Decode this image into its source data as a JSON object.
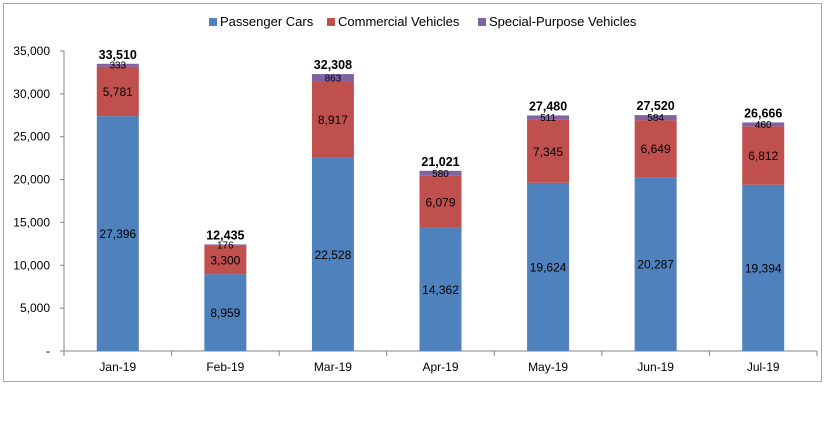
{
  "chart_data": {
    "type": "bar",
    "stacked": true,
    "categories": [
      "Jan-19",
      "Feb-19",
      "Mar-19",
      "Apr-19",
      "May-19",
      "Jun-19",
      "Jul-19"
    ],
    "series": [
      {
        "name": "Passenger Cars",
        "color": "#4f81bd",
        "values": [
          27396,
          8959,
          22528,
          14362,
          19624,
          20287,
          19394
        ]
      },
      {
        "name": "Commercial Vehicles",
        "color": "#c0504d",
        "values": [
          5781,
          3300,
          8917,
          6079,
          7345,
          6649,
          6812
        ]
      },
      {
        "name": "Special-Purpose Vehicles",
        "color": "#8064a2",
        "values": [
          333,
          176,
          863,
          580,
          511,
          584,
          460
        ]
      }
    ],
    "totals": [
      33510,
      12435,
      32308,
      21021,
      27480,
      27520,
      26666
    ],
    "ylim": [
      0,
      35000
    ],
    "yticks": [
      0,
      5000,
      10000,
      15000,
      20000,
      25000,
      30000,
      35000
    ],
    "ytick_labels": [
      "-",
      "5,000",
      "10,000",
      "15,000",
      "20,000",
      "25,000",
      "30,000",
      "35,000"
    ],
    "legend_position": "top-center",
    "grid": false
  }
}
